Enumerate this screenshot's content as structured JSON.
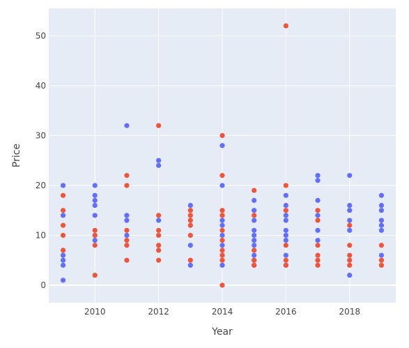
{
  "chart_data": {
    "type": "scatter",
    "xlabel": "Year",
    "ylabel": "Price",
    "xlim": [
      2008.55,
      2019.45
    ],
    "ylim": [
      -3.5,
      55.5
    ],
    "x_ticks": [
      2010,
      2012,
      2014,
      2016,
      2018
    ],
    "y_ticks": [
      0,
      10,
      20,
      30,
      40,
      50
    ],
    "grid": true,
    "legend": "none",
    "colors": {
      "background": "#e5ecf6",
      "grid": "#ffffff",
      "series_blue": "#636efa",
      "series_red": "#ef553b"
    },
    "series": [
      {
        "color": "#636efa",
        "points": [
          [
            2009,
            20
          ],
          [
            2009,
            14
          ],
          [
            2009,
            6
          ],
          [
            2009,
            5
          ],
          [
            2009,
            4
          ],
          [
            2009,
            1
          ],
          [
            2010,
            20
          ],
          [
            2010,
            18
          ],
          [
            2010,
            17
          ],
          [
            2010,
            16
          ],
          [
            2010,
            14
          ],
          [
            2010,
            10
          ],
          [
            2010,
            9
          ],
          [
            2011,
            32
          ],
          [
            2011,
            14
          ],
          [
            2011,
            13
          ],
          [
            2011,
            10
          ],
          [
            2012,
            25
          ],
          [
            2012,
            24
          ],
          [
            2012,
            13
          ],
          [
            2013,
            16
          ],
          [
            2013,
            8
          ],
          [
            2013,
            4
          ],
          [
            2014,
            28
          ],
          [
            2014,
            20
          ],
          [
            2014,
            13
          ],
          [
            2014,
            12
          ],
          [
            2014,
            10
          ],
          [
            2014,
            8
          ],
          [
            2014,
            6
          ],
          [
            2014,
            4
          ],
          [
            2015,
            17
          ],
          [
            2015,
            15
          ],
          [
            2015,
            13
          ],
          [
            2015,
            11
          ],
          [
            2015,
            10
          ],
          [
            2015,
            9
          ],
          [
            2015,
            8
          ],
          [
            2015,
            6
          ],
          [
            2015,
            5
          ],
          [
            2015,
            4
          ],
          [
            2016,
            18
          ],
          [
            2016,
            16
          ],
          [
            2016,
            14
          ],
          [
            2016,
            13
          ],
          [
            2016,
            11
          ],
          [
            2016,
            10
          ],
          [
            2016,
            9
          ],
          [
            2016,
            6
          ],
          [
            2016,
            4
          ],
          [
            2017,
            22
          ],
          [
            2017,
            21
          ],
          [
            2017,
            17
          ],
          [
            2017,
            14
          ],
          [
            2017,
            11
          ],
          [
            2017,
            9
          ],
          [
            2018,
            22
          ],
          [
            2018,
            16
          ],
          [
            2018,
            15
          ],
          [
            2018,
            13
          ],
          [
            2018,
            11
          ],
          [
            2018,
            2
          ],
          [
            2019,
            18
          ],
          [
            2019,
            16
          ],
          [
            2019,
            15
          ],
          [
            2019,
            13
          ],
          [
            2019,
            12
          ],
          [
            2019,
            11
          ],
          [
            2019,
            6
          ]
        ]
      },
      {
        "color": "#ef553b",
        "points": [
          [
            2009,
            18
          ],
          [
            2009,
            15
          ],
          [
            2009,
            12
          ],
          [
            2009,
            10
          ],
          [
            2009,
            7
          ],
          [
            2010,
            11
          ],
          [
            2010,
            10
          ],
          [
            2010,
            8
          ],
          [
            2010,
            2
          ],
          [
            2011,
            22
          ],
          [
            2011,
            20
          ],
          [
            2011,
            11
          ],
          [
            2011,
            9
          ],
          [
            2011,
            8
          ],
          [
            2011,
            5
          ],
          [
            2012,
            32
          ],
          [
            2012,
            14
          ],
          [
            2012,
            11
          ],
          [
            2012,
            10
          ],
          [
            2012,
            8
          ],
          [
            2012,
            7
          ],
          [
            2012,
            5
          ],
          [
            2013,
            15
          ],
          [
            2013,
            14
          ],
          [
            2013,
            13
          ],
          [
            2013,
            12
          ],
          [
            2013,
            10
          ],
          [
            2013,
            5
          ],
          [
            2014,
            30
          ],
          [
            2014,
            22
          ],
          [
            2014,
            15
          ],
          [
            2014,
            14
          ],
          [
            2014,
            11
          ],
          [
            2014,
            9
          ],
          [
            2014,
            7
          ],
          [
            2014,
            6
          ],
          [
            2014,
            5
          ],
          [
            2014,
            0
          ],
          [
            2015,
            19
          ],
          [
            2015,
            14
          ],
          [
            2015,
            7
          ],
          [
            2015,
            5
          ],
          [
            2015,
            4
          ],
          [
            2016,
            52
          ],
          [
            2016,
            20
          ],
          [
            2016,
            15
          ],
          [
            2016,
            8
          ],
          [
            2016,
            5
          ],
          [
            2016,
            4
          ],
          [
            2017,
            15
          ],
          [
            2017,
            13
          ],
          [
            2017,
            8
          ],
          [
            2017,
            6
          ],
          [
            2017,
            5
          ],
          [
            2017,
            4
          ],
          [
            2018,
            12
          ],
          [
            2018,
            8
          ],
          [
            2018,
            6
          ],
          [
            2018,
            5
          ],
          [
            2018,
            4
          ],
          [
            2019,
            8
          ],
          [
            2019,
            5
          ],
          [
            2019,
            4
          ]
        ]
      }
    ]
  }
}
